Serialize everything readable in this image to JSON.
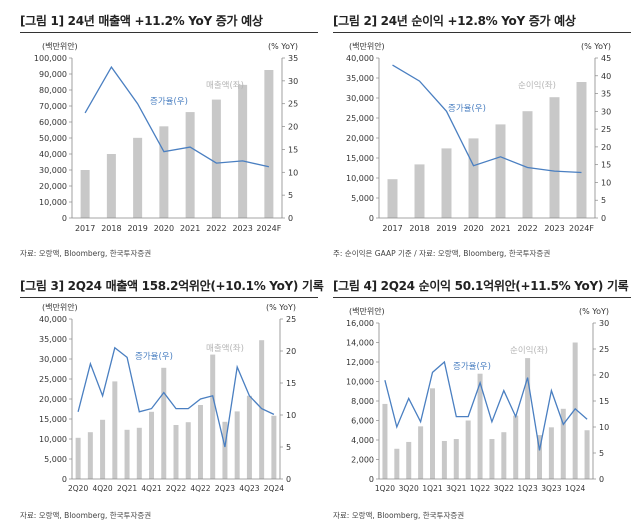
{
  "charts": [
    {
      "title": "[그림 1] 24년 매출액 +11.2% YoY 증가 예상",
      "note": "자료: 오랑액, Bloomberg, 한국투자증권",
      "left_unit": "(백만위안)",
      "right_unit": "(% YoY)",
      "bar_label": "매출액(좌)",
      "line_label": "증가율(우)"
    },
    {
      "title": "[그림 2] 24년 순이익 +12.8% YoY 증가 예상",
      "note": "주: 순이익은 GAAP 기준 / 자료: 오랑액, Bloomberg, 한국투자증권",
      "left_unit": "(백만위안)",
      "right_unit": "(% YoY)",
      "bar_label": "순이익(좌)",
      "line_label": "증가율(우)"
    },
    {
      "title": "[그림 3] 2Q24 매출액 158.2억위안(+10.1% YoY) 기록",
      "note": "자료: 오랑액, Bloomberg, 한국투자증권",
      "left_unit": "(백만위안)",
      "right_unit": "(% YoY)",
      "bar_label": "매출액(좌)",
      "line_label": "증가율(우)"
    },
    {
      "title": "[그림 4] 2Q24 순이익 50.1억위안(+11.5% YoY) 기록",
      "note": "자료: 오랑액, Bloomberg, 한국투자증권",
      "left_unit": "(백만위안)",
      "right_unit": "(% YoY)",
      "bar_label": "순이익(좌)",
      "line_label": "증가율(우)"
    }
  ],
  "colors": {
    "bar": "#c8c8c8",
    "line": "#4a7fc1",
    "axis": "#888888",
    "text": "#333333",
    "legend_bar": "#b5b5b5"
  },
  "chart_data": [
    {
      "type": "bar+line",
      "categories": [
        "2017",
        "2018",
        "2019",
        "2020",
        "2021",
        "2022",
        "2023",
        "2024F"
      ],
      "series": [
        {
          "name": "매출액(좌)",
          "axis": "left",
          "type": "bar",
          "values": [
            30000,
            40000,
            50100,
            57300,
            66200,
            74000,
            83200,
            92500
          ]
        },
        {
          "name": "증가율(우)",
          "axis": "right",
          "type": "line",
          "values": [
            23.0,
            33.0,
            25.0,
            14.5,
            15.5,
            12.0,
            12.5,
            11.2
          ]
        }
      ],
      "ylim_left": [
        0,
        100000
      ],
      "yticks_left": [
        0,
        10000,
        20000,
        30000,
        40000,
        50000,
        60000,
        70000,
        80000,
        90000,
        100000
      ],
      "ytick_labels_left": [
        "0",
        "10,000",
        "20,000",
        "30,000",
        "40,000",
        "50,000",
        "60,000",
        "70,000",
        "80,000",
        "90,000",
        "100,000"
      ],
      "ylim_right": [
        0,
        35
      ],
      "yticks_right": [
        0,
        5,
        10,
        15,
        20,
        25,
        30,
        35
      ],
      "ytick_labels_right": [
        "0",
        "5",
        "10",
        "15",
        "20",
        "25",
        "30",
        "35"
      ],
      "grid": false
    },
    {
      "type": "bar+line",
      "categories": [
        "2017",
        "2018",
        "2019",
        "2020",
        "2021",
        "2022",
        "2023",
        "2024F"
      ],
      "series": [
        {
          "name": "순이익(좌)",
          "axis": "left",
          "type": "bar",
          "values": [
            9700,
            13400,
            17400,
            19900,
            23400,
            26700,
            30200,
            34000
          ]
        },
        {
          "name": "증가율(우)",
          "axis": "right",
          "type": "line",
          "values": [
            43.0,
            38.5,
            30.0,
            14.7,
            17.2,
            14.2,
            13.2,
            12.8
          ]
        }
      ],
      "ylim_left": [
        0,
        40000
      ],
      "yticks_left": [
        0,
        5000,
        10000,
        15000,
        20000,
        25000,
        30000,
        35000,
        40000
      ],
      "ytick_labels_left": [
        "0",
        "5,000",
        "10,000",
        "15,000",
        "20,000",
        "25,000",
        "30,000",
        "35,000",
        "40,000"
      ],
      "ylim_right": [
        0,
        45
      ],
      "yticks_right": [
        0,
        5,
        10,
        15,
        20,
        25,
        30,
        35,
        40,
        45
      ],
      "ytick_labels_right": [
        "0",
        "5",
        "10",
        "15",
        "20",
        "25",
        "30",
        "35",
        "40",
        "45"
      ],
      "grid": false
    },
    {
      "type": "bar+line",
      "categories": [
        "2Q20",
        "3Q20",
        "4Q20",
        "1Q21",
        "2Q21",
        "3Q21",
        "4Q21",
        "1Q22",
        "2Q22",
        "3Q22",
        "4Q22",
        "1Q23",
        "2Q23",
        "3Q23",
        "4Q23",
        "1Q24",
        "2Q24"
      ],
      "tick_labels": [
        "2Q20",
        "4Q20",
        "2Q21",
        "4Q21",
        "2Q22",
        "4Q22",
        "2Q23",
        "4Q23",
        "2Q24"
      ],
      "series": [
        {
          "name": "매출액(좌)",
          "axis": "left",
          "type": "bar",
          "values": [
            10300,
            11700,
            14800,
            24400,
            12300,
            12800,
            16800,
            27800,
            13500,
            14200,
            18500,
            31100,
            14300,
            16900,
            20800,
            34700,
            15800
          ]
        },
        {
          "name": "증가율(우)",
          "axis": "right",
          "type": "line",
          "values": [
            10.5,
            18.0,
            13.0,
            20.5,
            19.0,
            10.5,
            11.0,
            13.5,
            11.0,
            11.0,
            12.5,
            13.0,
            5.0,
            17.5,
            13.0,
            11.0,
            10.1
          ]
        }
      ],
      "ylim_left": [
        0,
        40000
      ],
      "yticks_left": [
        0,
        5000,
        10000,
        15000,
        20000,
        25000,
        30000,
        35000,
        40000
      ],
      "ytick_labels_left": [
        "0",
        "5,000",
        "10,000",
        "15,000",
        "20,000",
        "25,000",
        "30,000",
        "35,000",
        "40,000"
      ],
      "ylim_right": [
        0,
        25
      ],
      "yticks_right": [
        0,
        5,
        10,
        15,
        20,
        25
      ],
      "ytick_labels_right": [
        "0",
        "5",
        "10",
        "15",
        "20",
        "25"
      ],
      "grid": false
    },
    {
      "type": "bar+line",
      "categories": [
        "1Q20",
        "2Q20",
        "3Q20",
        "4Q20",
        "1Q21",
        "2Q21",
        "3Q21",
        "4Q21",
        "1Q22",
        "2Q22",
        "3Q22",
        "4Q22",
        "1Q23",
        "2Q23",
        "3Q23",
        "4Q23",
        "1Q24",
        "2Q24"
      ],
      "tick_labels": [
        "1Q20",
        "3Q20",
        "1Q21",
        "3Q21",
        "1Q22",
        "3Q22",
        "1Q23",
        "3Q23",
        "1Q24"
      ],
      "series": [
        {
          "name": "순이익(좌)",
          "axis": "left",
          "type": "bar",
          "values": [
            7700,
            3100,
            3800,
            5400,
            9300,
            3900,
            4100,
            6000,
            10800,
            4100,
            4800,
            6500,
            12400,
            4500,
            5300,
            7200,
            14000,
            5000
          ]
        },
        {
          "name": "증가율(우)",
          "axis": "right",
          "type": "line",
          "values": [
            19.0,
            10.0,
            15.5,
            11.0,
            20.5,
            22.5,
            12.0,
            12.0,
            18.5,
            11.0,
            17.0,
            12.0,
            19.5,
            5.5,
            17.0,
            10.5,
            13.5,
            11.5
          ]
        }
      ],
      "ylim_left": [
        0,
        16000
      ],
      "yticks_left": [
        0,
        2000,
        4000,
        6000,
        8000,
        10000,
        12000,
        14000,
        16000
      ],
      "ytick_labels_left": [
        "0",
        "2,000",
        "4,000",
        "6,000",
        "8,000",
        "10,000",
        "12,000",
        "14,000",
        "16,000"
      ],
      "ylim_right": [
        0,
        30
      ],
      "yticks_right": [
        0,
        5,
        10,
        15,
        20,
        25,
        30
      ],
      "ytick_labels_right": [
        "0",
        "5",
        "10",
        "15",
        "20",
        "25",
        "30"
      ],
      "grid": false
    }
  ]
}
